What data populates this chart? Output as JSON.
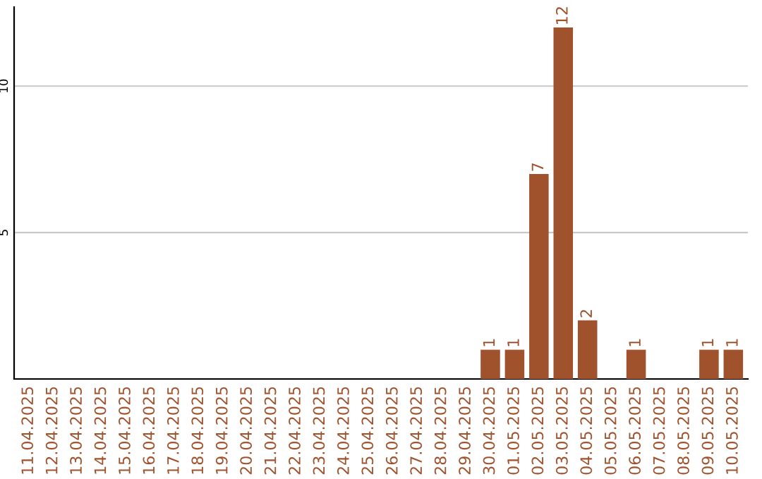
{
  "chart_data": {
    "type": "bar",
    "categories": [
      "11.04.2025",
      "12.04.2025",
      "13.04.2025",
      "14.04.2025",
      "15.04.2025",
      "16.04.2025",
      "17.04.2025",
      "18.04.2025",
      "19.04.2025",
      "20.04.2025",
      "21.04.2025",
      "22.04.2025",
      "23.04.2025",
      "24.04.2025",
      "25.04.2025",
      "26.04.2025",
      "27.04.2025",
      "28.04.2025",
      "29.04.2025",
      "30.04.2025",
      "01.05.2025",
      "02.05.2025",
      "03.05.2025",
      "04.05.2025",
      "05.05.2025",
      "06.05.2025",
      "07.05.2025",
      "08.05.2025",
      "09.05.2025",
      "10.05.2025"
    ],
    "values": [
      0,
      0,
      0,
      0,
      0,
      0,
      0,
      0,
      0,
      0,
      0,
      0,
      0,
      0,
      0,
      0,
      0,
      0,
      0,
      1,
      1,
      7,
      12,
      2,
      0,
      1,
      0,
      0,
      1,
      1
    ],
    "value_labels": [
      null,
      null,
      null,
      null,
      null,
      null,
      null,
      null,
      null,
      null,
      null,
      null,
      null,
      null,
      null,
      null,
      null,
      null,
      null,
      "1",
      "1",
      "7",
      "12",
      "2",
      null,
      "1",
      null,
      null,
      "1",
      "1"
    ],
    "color": "#a0522d",
    "ylim": [
      0,
      12.7
    ],
    "yticks": [
      5,
      10
    ],
    "grid": "y"
  }
}
